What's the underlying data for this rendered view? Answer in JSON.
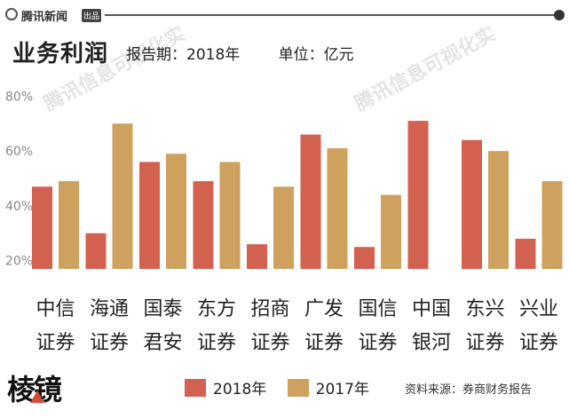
{
  "header": {
    "brand": "腾讯新闻",
    "brand_tag": "出品"
  },
  "title": "业务利润",
  "meta": {
    "period": "报告期：2018年",
    "unit": "单位：亿元"
  },
  "watermark": "腾讯信息可视化实",
  "source": "资料来源：券商财务报告",
  "bottom_logo": "棱镜",
  "colors": {
    "series_2018": "#d26150",
    "series_2017": "#cfa15f",
    "axis_text": "#888888"
  },
  "chart_data": {
    "type": "bar",
    "categories": [
      [
        "中信",
        "证券"
      ],
      [
        "海通",
        "证券"
      ],
      [
        "国泰",
        "君安"
      ],
      [
        "东方",
        "证券"
      ],
      [
        "招商",
        "证券"
      ],
      [
        "广发",
        "证券"
      ],
      [
        "国信",
        "证券"
      ],
      [
        "中国",
        "银河"
      ],
      [
        "东兴",
        "证券"
      ],
      [
        "兴业",
        "证券"
      ]
    ],
    "series": [
      {
        "name": "2018年",
        "values": [
          47,
          30,
          56,
          49,
          26,
          66,
          25,
          71,
          64,
          28
        ]
      },
      {
        "name": "2017年",
        "values": [
          49,
          70,
          59,
          56,
          47,
          61,
          44,
          null,
          60,
          49
        ]
      }
    ],
    "y_ticks": [
      "20%",
      "40%",
      "60%",
      "80%"
    ],
    "y_tick_values": [
      20,
      40,
      60,
      80
    ],
    "ylim": [
      17,
      84
    ],
    "legend": "bottom",
    "grid": false
  }
}
